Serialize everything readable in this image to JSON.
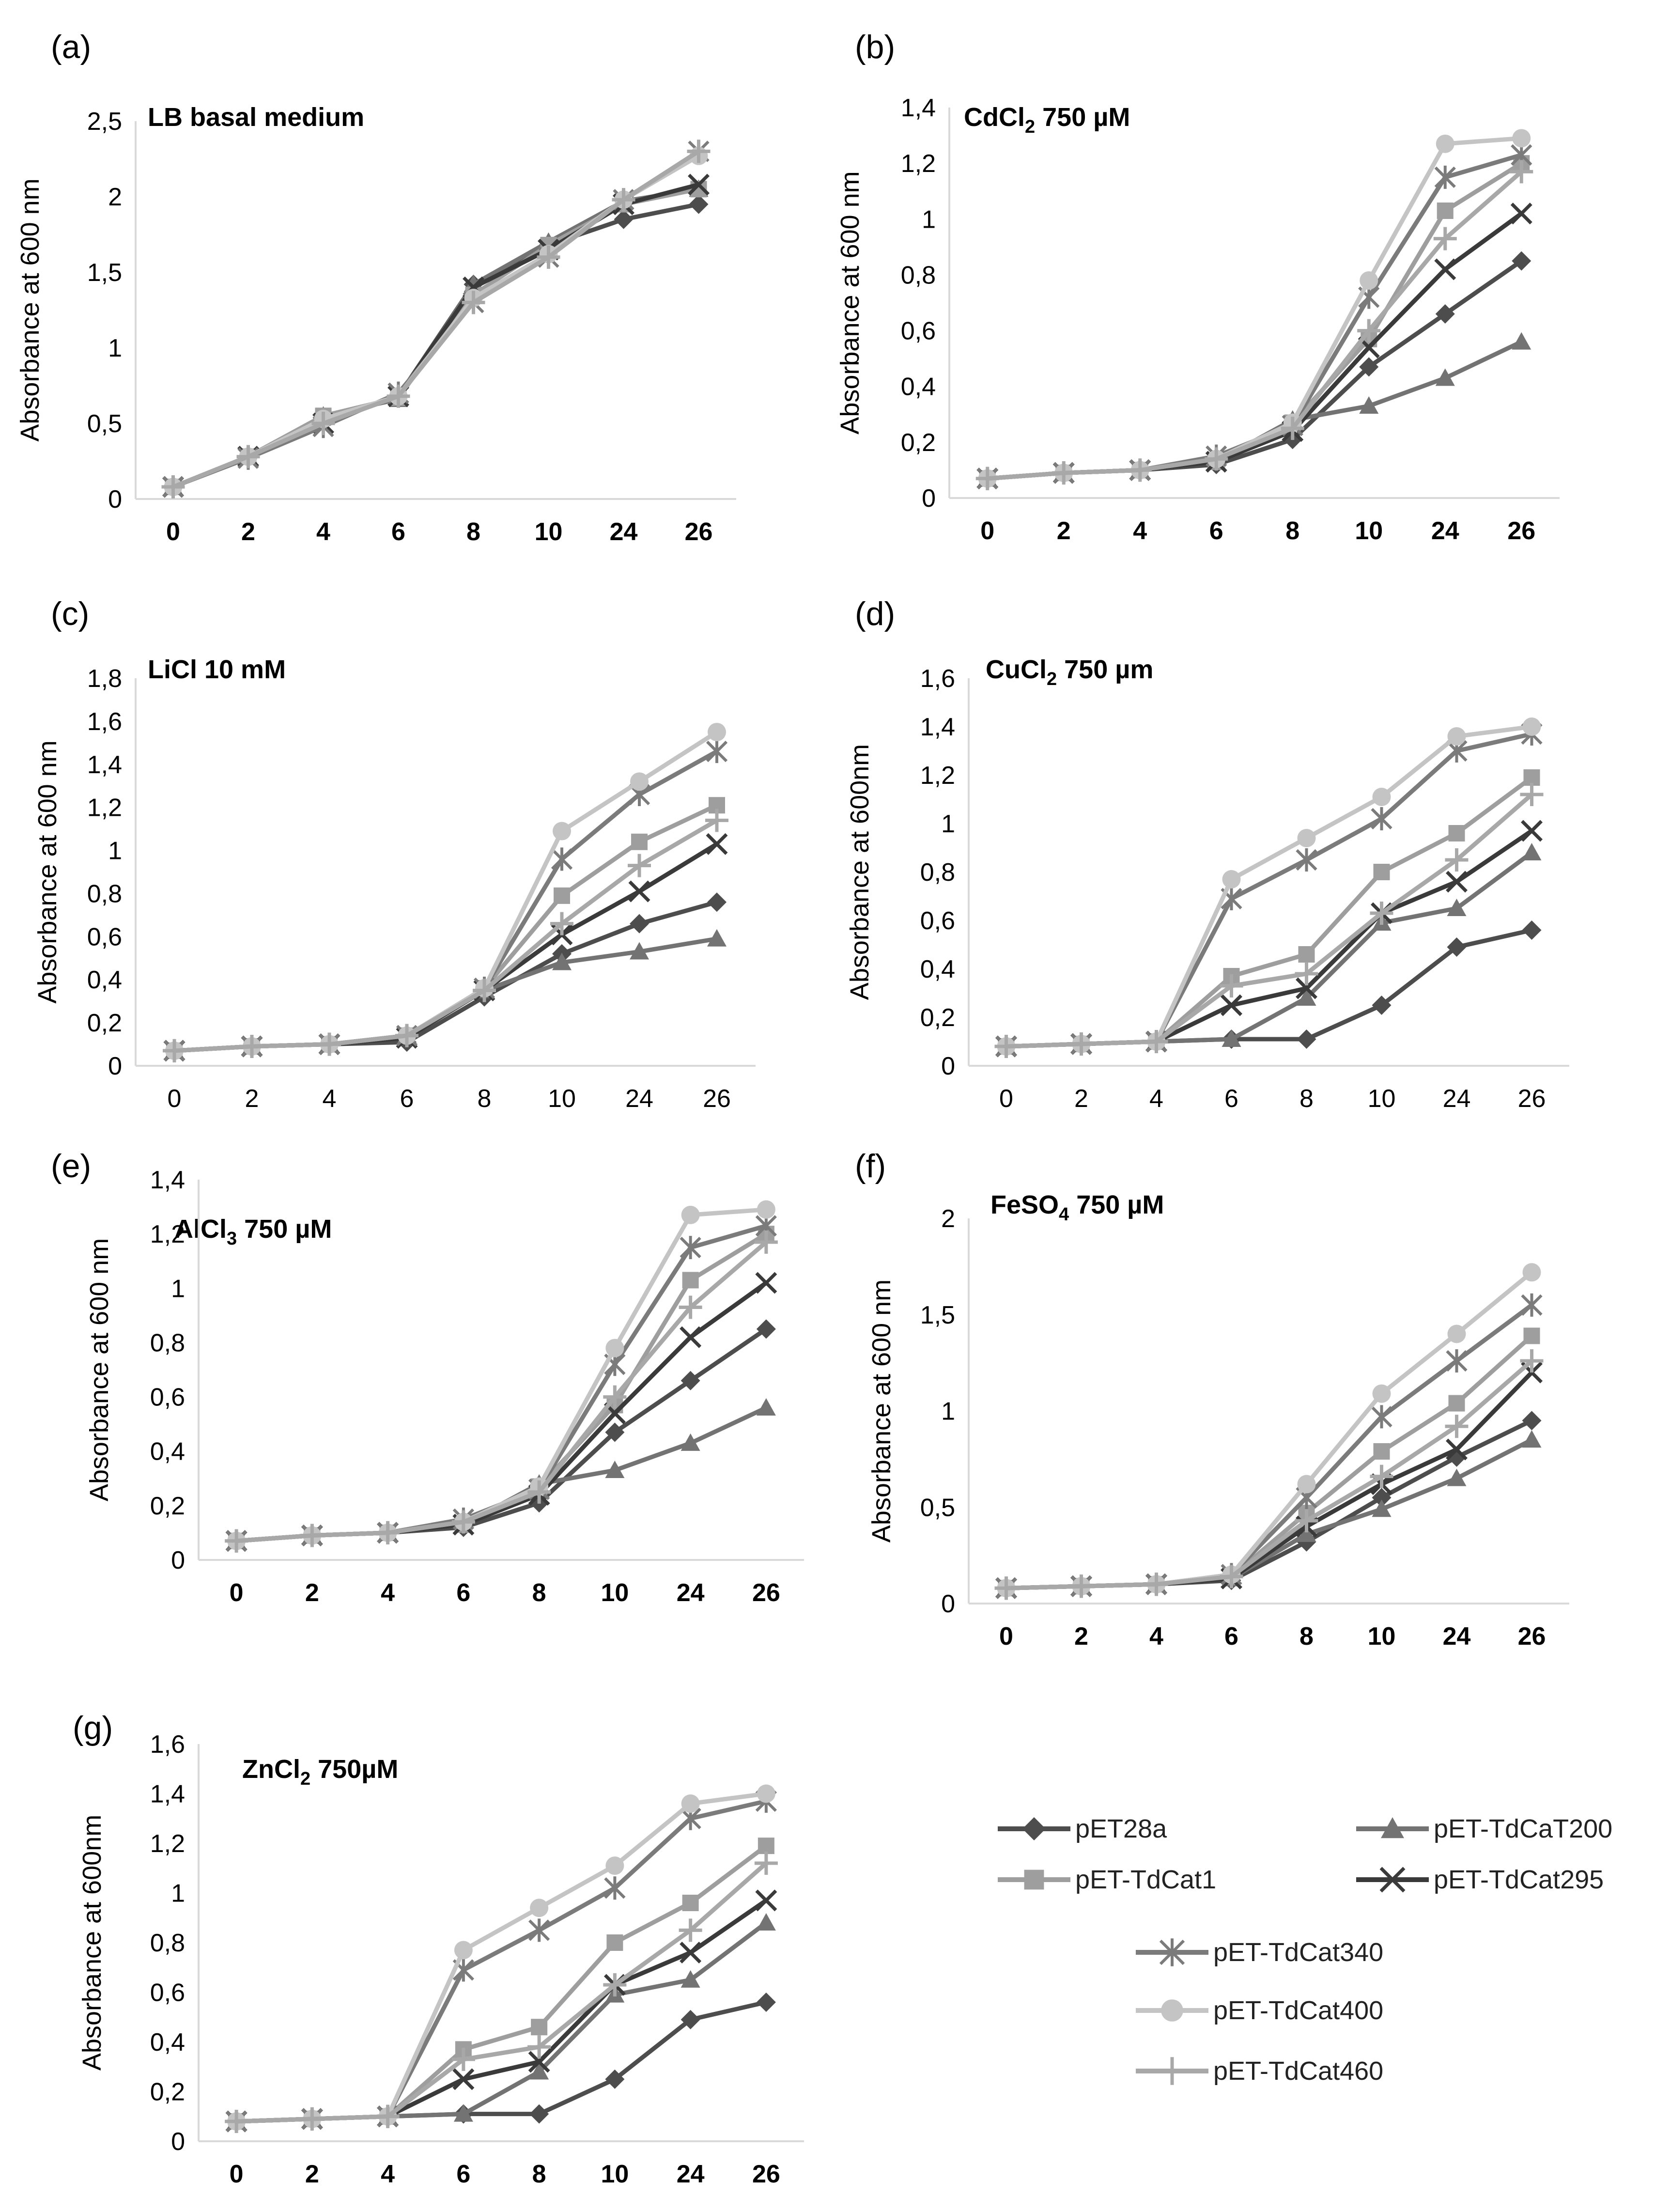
{
  "series_styles": [
    {
      "name": "pET28a",
      "color": "#4d4d4d",
      "marker": "diamond"
    },
    {
      "name": "pET-TdCaT200",
      "color": "#737373",
      "marker": "triangle"
    },
    {
      "name": "pET-TdCat1",
      "color": "#9e9e9e",
      "marker": "square"
    },
    {
      "name": "pET-TdCat295",
      "color": "#3a3a3a",
      "marker": "x"
    },
    {
      "name": "pET-TdCat340",
      "color": "#7b7b7b",
      "marker": "asterisk"
    },
    {
      "name": "pET-TdCat400",
      "color": "#c4c4c4",
      "marker": "circle"
    },
    {
      "name": "pET-TdCat460",
      "color": "#a8a8a8",
      "marker": "plus"
    }
  ],
  "chart_data": [
    {
      "panel": "(a)",
      "type": "line",
      "title": "LB basal medium",
      "title_sub": "",
      "ylabel": "Absorbance at 600 nm",
      "xlabel": "",
      "categories": [
        "0",
        "2",
        "4",
        "6",
        "8",
        "10",
        "24",
        "26"
      ],
      "ylim": [
        0,
        2.5
      ],
      "yticks": [
        "0",
        "0,5",
        "1",
        "1,5",
        "2",
        "2,5"
      ],
      "grid": false,
      "series": [
        {
          "name": "pET28a",
          "values": [
            0.08,
            0.28,
            0.52,
            0.68,
            1.42,
            1.68,
            1.85,
            1.95
          ]
        },
        {
          "name": "pET-TdCaT200",
          "values": [
            0.08,
            0.28,
            0.55,
            0.66,
            1.42,
            1.7,
            1.97,
            2.05
          ]
        },
        {
          "name": "pET-TdCat1",
          "values": [
            0.08,
            0.28,
            0.55,
            0.67,
            1.35,
            1.68,
            1.95,
            2.05
          ]
        },
        {
          "name": "pET-TdCat295",
          "values": [
            0.08,
            0.28,
            0.5,
            0.68,
            1.4,
            1.65,
            1.95,
            2.08
          ]
        },
        {
          "name": "pET-TdCat340",
          "values": [
            0.08,
            0.27,
            0.48,
            0.7,
            1.3,
            1.6,
            1.98,
            2.3
          ]
        },
        {
          "name": "pET-TdCat400",
          "values": [
            0.08,
            0.28,
            0.53,
            0.68,
            1.33,
            1.62,
            1.98,
            2.27
          ]
        },
        {
          "name": "pET-TdCat460",
          "values": [
            0.08,
            0.28,
            0.5,
            0.68,
            1.3,
            1.6,
            1.98,
            2.3
          ]
        }
      ]
    },
    {
      "panel": "(b)",
      "type": "line",
      "title": "CdCl",
      "title_sub": "2",
      "title_suffix": " 750 µM",
      "ylabel": "Absorbance at 600 nm",
      "xlabel": "",
      "categories": [
        "0",
        "2",
        "4",
        "6",
        "8",
        "10",
        "24",
        "26"
      ],
      "ylim": [
        0,
        1.4
      ],
      "yticks": [
        "0",
        "0,2",
        "0,4",
        "0,6",
        "0,8",
        "1",
        "1,2",
        "1,4"
      ],
      "grid": false,
      "series": [
        {
          "name": "pET28a",
          "values": [
            0.07,
            0.09,
            0.1,
            0.12,
            0.21,
            0.47,
            0.66,
            0.85
          ]
        },
        {
          "name": "pET-TdCaT200",
          "values": [
            0.07,
            0.09,
            0.1,
            0.13,
            0.28,
            0.33,
            0.43,
            0.56
          ]
        },
        {
          "name": "pET-TdCat1",
          "values": [
            0.07,
            0.09,
            0.1,
            0.13,
            0.27,
            0.57,
            1.03,
            1.2
          ]
        },
        {
          "name": "pET-TdCat295",
          "values": [
            0.07,
            0.09,
            0.1,
            0.13,
            0.24,
            0.54,
            0.82,
            1.02
          ]
        },
        {
          "name": "pET-TdCat340",
          "values": [
            0.07,
            0.09,
            0.1,
            0.15,
            0.26,
            0.72,
            1.15,
            1.23
          ]
        },
        {
          "name": "pET-TdCat400",
          "values": [
            0.07,
            0.09,
            0.1,
            0.14,
            0.27,
            0.78,
            1.27,
            1.29
          ]
        },
        {
          "name": "pET-TdCat460",
          "values": [
            0.07,
            0.09,
            0.1,
            0.14,
            0.25,
            0.6,
            0.93,
            1.17
          ]
        }
      ]
    },
    {
      "panel": "(c)",
      "type": "line",
      "title": "LiCl 10 mM",
      "title_sub": "",
      "ylabel": "Absorbance at 600 nm",
      "xlabel": "",
      "categories": [
        "0",
        "2",
        "4",
        "6",
        "8",
        "10",
        "24",
        "26"
      ],
      "ylim": [
        0,
        1.8
      ],
      "yticks": [
        "0",
        "0,2",
        "0,4",
        "0,6",
        "0,8",
        "1",
        "1,2",
        "1,4",
        "1,6",
        "1,8"
      ],
      "grid": false,
      "series": [
        {
          "name": "pET28a",
          "values": [
            0.07,
            0.09,
            0.1,
            0.11,
            0.32,
            0.52,
            0.66,
            0.76
          ]
        },
        {
          "name": "pET-TdCaT200",
          "values": [
            0.07,
            0.09,
            0.1,
            0.14,
            0.35,
            0.48,
            0.53,
            0.59
          ]
        },
        {
          "name": "pET-TdCat1",
          "values": [
            0.07,
            0.09,
            0.1,
            0.14,
            0.36,
            0.79,
            1.04,
            1.21
          ]
        },
        {
          "name": "pET-TdCat295",
          "values": [
            0.07,
            0.09,
            0.1,
            0.13,
            0.35,
            0.61,
            0.81,
            1.03
          ]
        },
        {
          "name": "pET-TdCat340",
          "values": [
            0.07,
            0.09,
            0.1,
            0.14,
            0.36,
            0.96,
            1.26,
            1.46
          ]
        },
        {
          "name": "pET-TdCat400",
          "values": [
            0.07,
            0.09,
            0.1,
            0.14,
            0.36,
            1.09,
            1.32,
            1.55
          ]
        },
        {
          "name": "pET-TdCat460",
          "values": [
            0.07,
            0.09,
            0.1,
            0.14,
            0.35,
            0.66,
            0.93,
            1.14
          ]
        }
      ]
    },
    {
      "panel": "(d)",
      "type": "line",
      "title": "CuCl",
      "title_sub": "2",
      "title_suffix": " 750 µm",
      "ylabel": "Absorbance at 600nm",
      "xlabel": "",
      "categories": [
        "0",
        "2",
        "4",
        "6",
        "8",
        "10",
        "24",
        "26"
      ],
      "ylim": [
        0,
        1.6
      ],
      "yticks": [
        "0",
        "0,2",
        "0,4",
        "0,6",
        "0,8",
        "1",
        "1,2",
        "1,4",
        "1,6"
      ],
      "grid": false,
      "series": [
        {
          "name": "pET28a",
          "values": [
            0.08,
            0.09,
            0.1,
            0.11,
            0.11,
            0.25,
            0.49,
            0.56
          ]
        },
        {
          "name": "pET-TdCaT200",
          "values": [
            0.08,
            0.09,
            0.1,
            0.11,
            0.28,
            0.59,
            0.65,
            0.88
          ]
        },
        {
          "name": "pET-TdCat1",
          "values": [
            0.08,
            0.09,
            0.1,
            0.37,
            0.46,
            0.8,
            0.96,
            1.19
          ]
        },
        {
          "name": "pET-TdCat295",
          "values": [
            0.08,
            0.09,
            0.1,
            0.25,
            0.32,
            0.63,
            0.76,
            0.97
          ]
        },
        {
          "name": "pET-TdCat340",
          "values": [
            0.08,
            0.09,
            0.1,
            0.69,
            0.85,
            1.02,
            1.3,
            1.37
          ]
        },
        {
          "name": "pET-TdCat400",
          "values": [
            0.08,
            0.09,
            0.1,
            0.77,
            0.94,
            1.11,
            1.36,
            1.4
          ]
        },
        {
          "name": "pET-TdCat460",
          "values": [
            0.08,
            0.09,
            0.1,
            0.33,
            0.38,
            0.63,
            0.85,
            1.12
          ]
        }
      ]
    },
    {
      "panel": "(e)",
      "type": "line",
      "title": "AlCl",
      "title_sub": "3",
      "title_suffix": " 750 µM",
      "ylabel": "Absorbance at 600 nm",
      "xlabel": "",
      "categories": [
        "0",
        "2",
        "4",
        "6",
        "8",
        "10",
        "24",
        "26"
      ],
      "ylim": [
        0,
        1.4
      ],
      "yticks": [
        "0",
        "0,2",
        "0,4",
        "0,6",
        "0,8",
        "1",
        "1,2",
        "1,4"
      ],
      "grid": false,
      "series": [
        {
          "name": "pET28a",
          "values": [
            0.07,
            0.09,
            0.1,
            0.12,
            0.21,
            0.47,
            0.66,
            0.85
          ]
        },
        {
          "name": "pET-TdCaT200",
          "values": [
            0.07,
            0.09,
            0.1,
            0.13,
            0.28,
            0.33,
            0.43,
            0.56
          ]
        },
        {
          "name": "pET-TdCat1",
          "values": [
            0.07,
            0.09,
            0.1,
            0.13,
            0.27,
            0.57,
            1.03,
            1.2
          ]
        },
        {
          "name": "pET-TdCat295",
          "values": [
            0.07,
            0.09,
            0.1,
            0.13,
            0.24,
            0.54,
            0.82,
            1.02
          ]
        },
        {
          "name": "pET-TdCat340",
          "values": [
            0.07,
            0.09,
            0.1,
            0.15,
            0.26,
            0.72,
            1.15,
            1.23
          ]
        },
        {
          "name": "pET-TdCat400",
          "values": [
            0.07,
            0.09,
            0.1,
            0.14,
            0.27,
            0.78,
            1.27,
            1.29
          ]
        },
        {
          "name": "pET-TdCat460",
          "values": [
            0.07,
            0.09,
            0.1,
            0.14,
            0.25,
            0.6,
            0.93,
            1.17
          ]
        }
      ]
    },
    {
      "panel": "(f)",
      "type": "line",
      "title": "FeSO",
      "title_sub": "4",
      "title_suffix": " 750 µM",
      "ylabel": "Absorbance at 600 nm",
      "xlabel": "",
      "categories": [
        "0",
        "2",
        "4",
        "6",
        "8",
        "10",
        "24",
        "26"
      ],
      "ylim": [
        0,
        2
      ],
      "yticks": [
        "0",
        "0,5",
        "1",
        "1,5",
        "2"
      ],
      "grid": false,
      "series": [
        {
          "name": "pET28a",
          "values": [
            0.08,
            0.09,
            0.1,
            0.12,
            0.32,
            0.55,
            0.76,
            0.95
          ]
        },
        {
          "name": "pET-TdCaT200",
          "values": [
            0.08,
            0.09,
            0.1,
            0.13,
            0.36,
            0.49,
            0.65,
            0.85
          ]
        },
        {
          "name": "pET-TdCat1",
          "values": [
            0.08,
            0.09,
            0.1,
            0.14,
            0.47,
            0.79,
            1.04,
            1.39
          ]
        },
        {
          "name": "pET-TdCat295",
          "values": [
            0.08,
            0.09,
            0.1,
            0.13,
            0.4,
            0.62,
            0.8,
            1.2
          ]
        },
        {
          "name": "pET-TdCat340",
          "values": [
            0.08,
            0.09,
            0.1,
            0.15,
            0.55,
            0.97,
            1.26,
            1.55
          ]
        },
        {
          "name": "pET-TdCat400",
          "values": [
            0.08,
            0.09,
            0.1,
            0.15,
            0.62,
            1.09,
            1.4,
            1.72
          ]
        },
        {
          "name": "pET-TdCat460",
          "values": [
            0.08,
            0.09,
            0.1,
            0.14,
            0.43,
            0.66,
            0.92,
            1.26
          ]
        }
      ]
    },
    {
      "panel": "(g)",
      "type": "line",
      "title": "ZnCl",
      "title_sub": "2",
      "title_suffix": " 750µM",
      "ylabel": "Absorbance at 600nm",
      "xlabel": "",
      "categories": [
        "0",
        "2",
        "4",
        "6",
        "8",
        "10",
        "24",
        "26"
      ],
      "ylim": [
        0,
        1.6
      ],
      "yticks": [
        "0",
        "0,2",
        "0,4",
        "0,6",
        "0,8",
        "1",
        "1,2",
        "1,4",
        "1,6"
      ],
      "grid": false,
      "series": [
        {
          "name": "pET28a",
          "values": [
            0.08,
            0.09,
            0.1,
            0.11,
            0.11,
            0.25,
            0.49,
            0.56
          ]
        },
        {
          "name": "pET-TdCaT200",
          "values": [
            0.08,
            0.09,
            0.1,
            0.11,
            0.28,
            0.59,
            0.65,
            0.88
          ]
        },
        {
          "name": "pET-TdCat1",
          "values": [
            0.08,
            0.09,
            0.1,
            0.37,
            0.46,
            0.8,
            0.96,
            1.19
          ]
        },
        {
          "name": "pET-TdCat295",
          "values": [
            0.08,
            0.09,
            0.1,
            0.25,
            0.32,
            0.63,
            0.76,
            0.97
          ]
        },
        {
          "name": "pET-TdCat340",
          "values": [
            0.08,
            0.09,
            0.1,
            0.69,
            0.85,
            1.02,
            1.3,
            1.37
          ]
        },
        {
          "name": "pET-TdCat400",
          "values": [
            0.08,
            0.09,
            0.1,
            0.77,
            0.94,
            1.11,
            1.36,
            1.4
          ]
        },
        {
          "name": "pET-TdCat460",
          "values": [
            0.08,
            0.09,
            0.1,
            0.33,
            0.38,
            0.63,
            0.85,
            1.12
          ]
        }
      ]
    }
  ],
  "legend": {
    "entries": [
      "pET28a",
      "pET-TdCaT200",
      "pET-TdCat1",
      "pET-TdCat295",
      "pET-TdCat340",
      "pET-TdCat400",
      "pET-TdCat460"
    ]
  }
}
